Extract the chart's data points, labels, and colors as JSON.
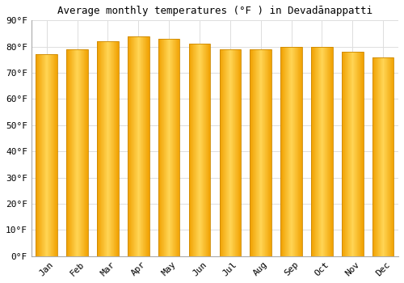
{
  "months": [
    "Jan",
    "Feb",
    "Mar",
    "Apr",
    "May",
    "Jun",
    "Jul",
    "Aug",
    "Sep",
    "Oct",
    "Nov",
    "Dec"
  ],
  "values": [
    77,
    79,
    82,
    84,
    83,
    81,
    79,
    79,
    80,
    80,
    78,
    76
  ],
  "bar_edge_color": "#E8950A",
  "bar_center_color": "#FFD040",
  "bar_outer_color": "#F5A800",
  "title": "Average monthly temperatures (°F ) in Devadānappatti",
  "ylim": [
    0,
    90
  ],
  "yticks": [
    0,
    10,
    20,
    30,
    40,
    50,
    60,
    70,
    80,
    90
  ],
  "ytick_labels": [
    "0°F",
    "10°F",
    "20°F",
    "30°F",
    "40°F",
    "50°F",
    "60°F",
    "70°F",
    "80°F",
    "90°F"
  ],
  "background_color": "#ffffff",
  "grid_color": "#dddddd",
  "title_fontsize": 9,
  "tick_fontsize": 8,
  "bar_width": 0.7
}
